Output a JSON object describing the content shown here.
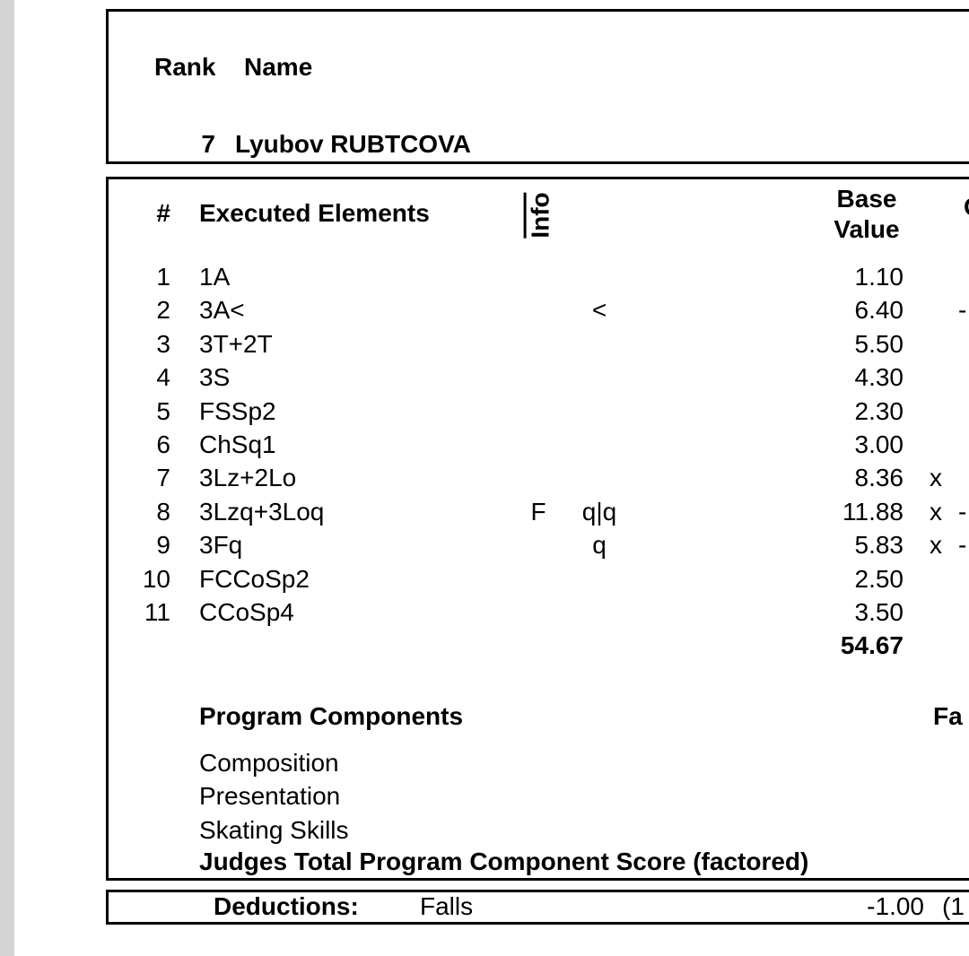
{
  "colors": {
    "background": "#ffffff",
    "text": "#000000",
    "border": "#000000",
    "edge_strip": "#d2d4d6"
  },
  "header_box": {
    "rank_label": "Rank",
    "name_label": "Name",
    "rank": "7",
    "skater_name": "Lyubov RUBTCOVA"
  },
  "elements_table": {
    "columns": {
      "num": "#",
      "executed_elements": "Executed Elements",
      "info": "Info",
      "base_value_line1": "Base",
      "base_value_line2": "Value",
      "goe_clipped": "G"
    },
    "rows": [
      {
        "num": "1",
        "element": "1A",
        "info": "",
        "marks": "",
        "base": "1.10",
        "credit": "",
        "goe": ""
      },
      {
        "num": "2",
        "element": "3A<",
        "info": "",
        "marks": "<",
        "base": "6.40",
        "credit": "",
        "goe": "-"
      },
      {
        "num": "3",
        "element": "3T+2T",
        "info": "",
        "marks": "",
        "base": "5.50",
        "credit": "",
        "goe": ""
      },
      {
        "num": "4",
        "element": "3S",
        "info": "",
        "marks": "",
        "base": "4.30",
        "credit": "",
        "goe": ""
      },
      {
        "num": "5",
        "element": "FSSp2",
        "info": "",
        "marks": "",
        "base": "2.30",
        "credit": "",
        "goe": ""
      },
      {
        "num": "6",
        "element": "ChSq1",
        "info": "",
        "marks": "",
        "base": "3.00",
        "credit": "",
        "goe": ""
      },
      {
        "num": "7",
        "element": "3Lz+2Lo",
        "info": "",
        "marks": "",
        "base": "8.36",
        "credit": "x",
        "goe": ""
      },
      {
        "num": "8",
        "element": "3Lzq+3Loq",
        "info": "F",
        "marks": "q|q",
        "base": "11.88",
        "credit": "x",
        "goe": "-"
      },
      {
        "num": "9",
        "element": "3Fq",
        "info": "",
        "marks": "q",
        "base": "5.83",
        "credit": "x",
        "goe": "-"
      },
      {
        "num": "10",
        "element": "FCCoSp2",
        "info": "",
        "marks": "",
        "base": "2.50",
        "credit": "",
        "goe": ""
      },
      {
        "num": "11",
        "element": "CCoSp4",
        "info": "",
        "marks": "",
        "base": "3.50",
        "credit": "",
        "goe": ""
      }
    ],
    "total_base_value": "54.67"
  },
  "program_components": {
    "header": "Program Components",
    "factor_clipped": "Fa",
    "rows": [
      "Composition",
      "Presentation",
      "Skating Skills"
    ],
    "judges_total_label": "Judges Total Program Component Score (factored)"
  },
  "deductions": {
    "label": "Deductions:",
    "reason": "Falls",
    "value": "-1.00",
    "count_clipped": "(1"
  }
}
